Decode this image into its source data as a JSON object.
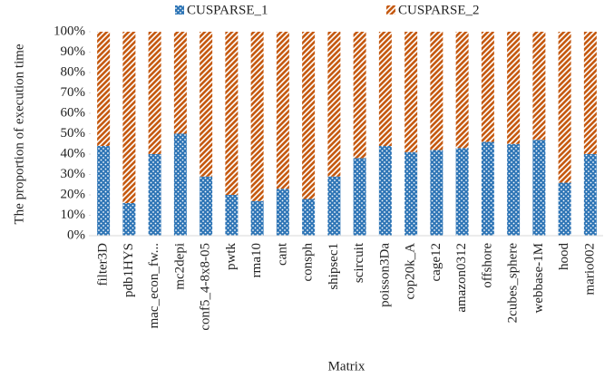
{
  "chart_data": {
    "type": "stacked_bar",
    "categories": [
      "filter3D",
      "pdb1HYS",
      "mac_econ_fw...",
      "mc2depi",
      "conf5_4-8x8-05",
      "pwtk",
      "rma10",
      "cant",
      "consph",
      "shipsec1",
      "scircuit",
      "poisson3Da",
      "cop20k_A",
      "cage12",
      "amazon0312",
      "offshore",
      "2cubes_sphere",
      "webbase-1M",
      "hood",
      "mario002"
    ],
    "series": [
      {
        "name": "CUSPARSE_1",
        "color": "#2e75b6",
        "values": [
          44,
          16,
          40,
          50,
          29,
          20,
          17,
          23,
          18,
          29,
          38,
          44,
          41,
          42,
          43,
          46,
          45,
          47,
          26,
          40
        ]
      },
      {
        "name": "CUSPARSE_2",
        "color": "#c55a11",
        "values": [
          56,
          84,
          60,
          50,
          71,
          80,
          83,
          77,
          82,
          71,
          62,
          56,
          59,
          58,
          57,
          54,
          55,
          53,
          74,
          60
        ]
      }
    ],
    "ylabel": "The proportion of execution time",
    "xlabel": "Matrix",
    "ylim": [
      0,
      100
    ],
    "yticks": [
      {
        "value": 0,
        "label": "0%"
      },
      {
        "value": 10,
        "label": "10%"
      },
      {
        "value": 20,
        "label": "20%"
      },
      {
        "value": 30,
        "label": "30%"
      },
      {
        "value": 40,
        "label": "40%"
      },
      {
        "value": 50,
        "label": "50%"
      },
      {
        "value": 60,
        "label": "60%"
      },
      {
        "value": 70,
        "label": "70%"
      },
      {
        "value": 80,
        "label": "80%"
      },
      {
        "value": 90,
        "label": "90%"
      },
      {
        "value": 100,
        "label": "100%"
      }
    ],
    "legend": "top"
  }
}
